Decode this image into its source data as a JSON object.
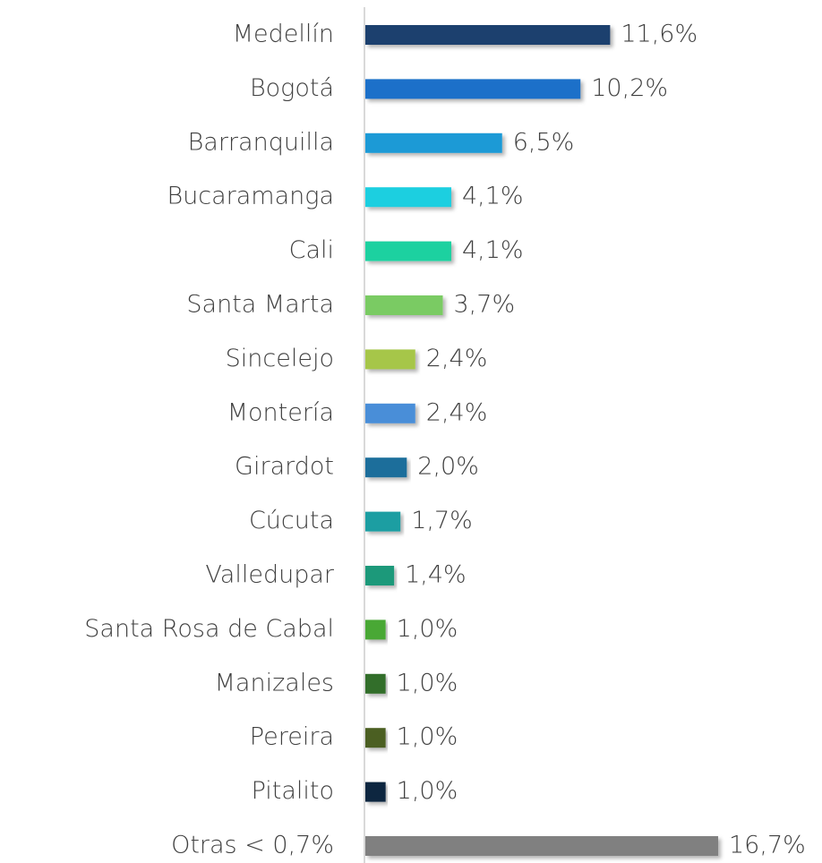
{
  "chart_data": {
    "type": "bar",
    "orientation": "horizontal",
    "categories": [
      "Medellín",
      "Bogotá",
      "Barranquilla",
      "Bucaramanga",
      "Cali",
      "Santa Marta",
      "Sincelejo",
      "Montería",
      "Girardot",
      "Cúcuta",
      "Valledupar",
      "Santa Rosa de Cabal",
      "Manizales",
      "Pereira",
      "Pitalito",
      "Otras < 0,7%"
    ],
    "values": [
      11.6,
      10.2,
      6.5,
      4.1,
      4.1,
      3.7,
      2.4,
      2.4,
      2.0,
      1.7,
      1.4,
      1.0,
      1.0,
      1.0,
      1.0,
      16.7
    ],
    "value_labels": [
      "11,6%",
      "10,2%",
      "6,5%",
      "4,1%",
      "4,1%",
      "3,7%",
      "2,4%",
      "2,4%",
      "2,0%",
      "1,7%",
      "1,4%",
      "1,0%",
      "1,0%",
      "1,0%",
      "1,0%",
      "16,7%"
    ],
    "colors": [
      "#1c3f6e",
      "#1a6fc9",
      "#1a9ad6",
      "#1fcfe0",
      "#1fd1a0",
      "#7acb63",
      "#a6c64a",
      "#4a8ed8",
      "#1a6e9b",
      "#1a9ea2",
      "#1a997a",
      "#4aa836",
      "#336e2a",
      "#4c5f22",
      "#102540",
      "#808080"
    ]
  }
}
